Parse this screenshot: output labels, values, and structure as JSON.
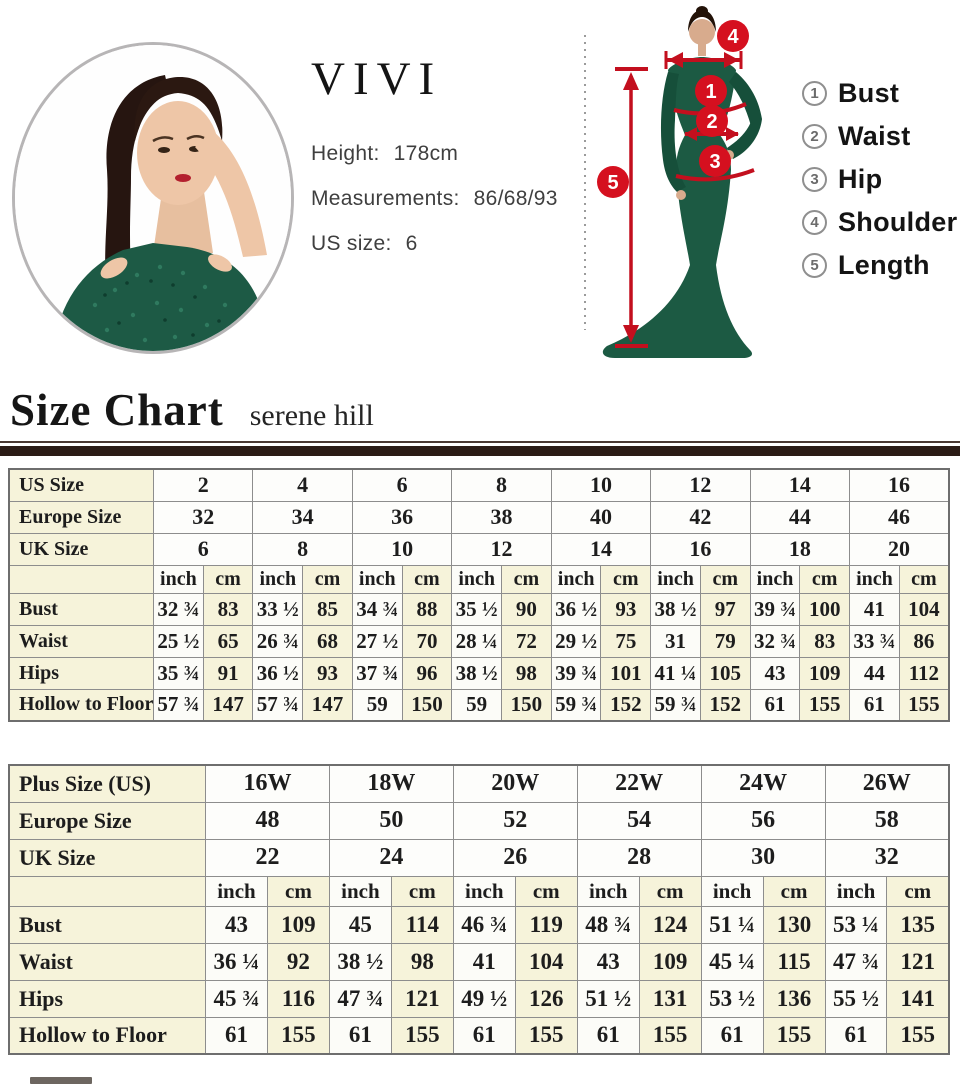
{
  "hero": {
    "brand": "VIVI",
    "height_label": "Height:",
    "height_value": "178cm",
    "measurements_label": "Measurements:",
    "measurements_value": "86/68/93",
    "us_size_label": "US size:",
    "us_size_value": "6"
  },
  "diagram": {
    "markers": [
      "1",
      "2",
      "3",
      "4",
      "5"
    ],
    "legend": [
      {
        "num": "1",
        "label": "Bust"
      },
      {
        "num": "2",
        "label": "Waist"
      },
      {
        "num": "3",
        "label": "Hip"
      },
      {
        "num": "4",
        "label": "Shoulder"
      },
      {
        "num": "5",
        "label": "Length"
      }
    ]
  },
  "size_chart": {
    "title": "Size Chart",
    "subtitle": "serene hill"
  },
  "colors": {
    "accent_red": "#d5101f",
    "dress_green": "#1c5a43",
    "cream_cell": "#f6f3da",
    "divider_bar": "#2b1c16"
  },
  "tables": {
    "standard": {
      "header_rows": [
        {
          "label": "US Size",
          "values": [
            "2",
            "4",
            "6",
            "8",
            "10",
            "12",
            "14",
            "16"
          ]
        },
        {
          "label": "Europe Size",
          "values": [
            "32",
            "34",
            "36",
            "38",
            "40",
            "42",
            "44",
            "46"
          ]
        },
        {
          "label": "UK Size",
          "values": [
            "6",
            "8",
            "10",
            "12",
            "14",
            "16",
            "18",
            "20"
          ]
        }
      ],
      "units": {
        "inch": "inch",
        "cm": "cm"
      },
      "data_rows": [
        {
          "label": "Bust",
          "values": [
            [
              "32 ¾",
              "83"
            ],
            [
              "33 ½",
              "85"
            ],
            [
              "34 ¾",
              "88"
            ],
            [
              "35 ½",
              "90"
            ],
            [
              "36 ½",
              "93"
            ],
            [
              "38 ½",
              "97"
            ],
            [
              "39 ¾",
              "100"
            ],
            [
              "41",
              "104"
            ]
          ]
        },
        {
          "label": "Waist",
          "values": [
            [
              "25 ½",
              "65"
            ],
            [
              "26 ¾",
              "68"
            ],
            [
              "27 ½",
              "70"
            ],
            [
              "28 ¼",
              "72"
            ],
            [
              "29 ½",
              "75"
            ],
            [
              "31",
              "79"
            ],
            [
              "32 ¾",
              "83"
            ],
            [
              "33 ¾",
              "86"
            ]
          ]
        },
        {
          "label": "Hips",
          "values": [
            [
              "35 ¾",
              "91"
            ],
            [
              "36 ½",
              "93"
            ],
            [
              "37 ¾",
              "96"
            ],
            [
              "38 ½",
              "98"
            ],
            [
              "39 ¾",
              "101"
            ],
            [
              "41 ¼",
              "105"
            ],
            [
              "43",
              "109"
            ],
            [
              "44",
              "112"
            ]
          ]
        },
        {
          "label": "Hollow to Floor",
          "values": [
            [
              "57 ¾",
              "147"
            ],
            [
              "57 ¾",
              "147"
            ],
            [
              "59",
              "150"
            ],
            [
              "59",
              "150"
            ],
            [
              "59 ¾",
              "152"
            ],
            [
              "59 ¾",
              "152"
            ],
            [
              "61",
              "155"
            ],
            [
              "61",
              "155"
            ]
          ]
        }
      ]
    },
    "plus": {
      "header_rows": [
        {
          "label": "Plus Size (US)",
          "values": [
            "16W",
            "18W",
            "20W",
            "22W",
            "24W",
            "26W"
          ]
        },
        {
          "label": "Europe Size",
          "values": [
            "48",
            "50",
            "52",
            "54",
            "56",
            "58"
          ]
        },
        {
          "label": "UK Size",
          "values": [
            "22",
            "24",
            "26",
            "28",
            "30",
            "32"
          ]
        }
      ],
      "units": {
        "inch": "inch",
        "cm": "cm"
      },
      "data_rows": [
        {
          "label": "Bust",
          "values": [
            [
              "43",
              "109"
            ],
            [
              "45",
              "114"
            ],
            [
              "46 ¾",
              "119"
            ],
            [
              "48 ¾",
              "124"
            ],
            [
              "51 ¼",
              "130"
            ],
            [
              "53 ¼",
              "135"
            ]
          ]
        },
        {
          "label": "Waist",
          "values": [
            [
              "36 ¼",
              "92"
            ],
            [
              "38 ½",
              "98"
            ],
            [
              "41",
              "104"
            ],
            [
              "43",
              "109"
            ],
            [
              "45 ¼",
              "115"
            ],
            [
              "47 ¾",
              "121"
            ]
          ]
        },
        {
          "label": "Hips",
          "values": [
            [
              "45 ¾",
              "116"
            ],
            [
              "47 ¾",
              "121"
            ],
            [
              "49 ½",
              "126"
            ],
            [
              "51 ½",
              "131"
            ],
            [
              "53 ½",
              "136"
            ],
            [
              "55 ½",
              "141"
            ]
          ]
        },
        {
          "label": "Hollow to Floor",
          "values": [
            [
              "61",
              "155"
            ],
            [
              "61",
              "155"
            ],
            [
              "61",
              "155"
            ],
            [
              "61",
              "155"
            ],
            [
              "61",
              "155"
            ],
            [
              "61",
              "155"
            ]
          ]
        }
      ]
    }
  }
}
